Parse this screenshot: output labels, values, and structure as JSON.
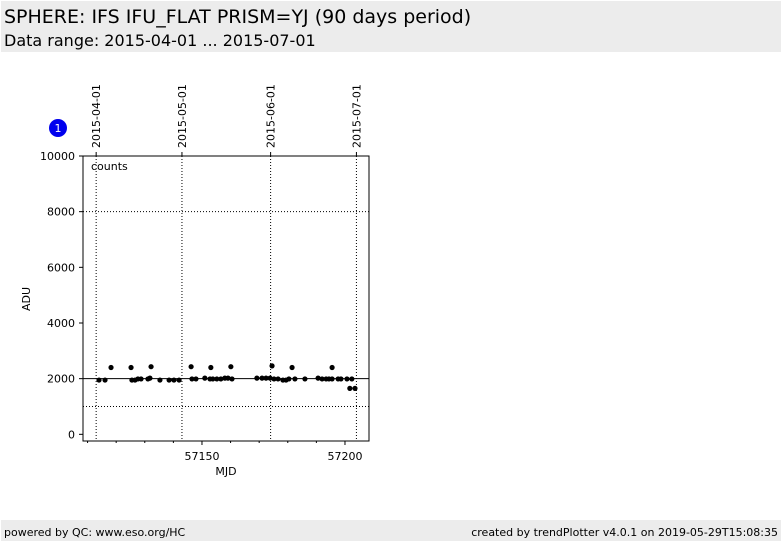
{
  "header": {
    "title": "SPHERE: IFS IFU_FLAT PRISM=YJ (90 days period)",
    "subtitle": "Data range: 2015-04-01 ... 2015-07-01"
  },
  "badge": "1",
  "chart_data": {
    "type": "scatter",
    "ylabel": "ADU",
    "xlabel": "MJD",
    "annotation": "counts",
    "color": "#000000",
    "x": [
      57114.0,
      57116.1,
      57118.2,
      57125.2,
      57125.5,
      57126.6,
      57127.6,
      57128.7,
      57131.1,
      57131.8,
      57132.2,
      57135.3,
      57138.5,
      57140.2,
      57142.0,
      57146.2,
      57146.5,
      57147.9,
      57151.0,
      57152.8,
      57153.1,
      57153.8,
      57155.2,
      57156.6,
      57158.0,
      57159.1,
      57160.1,
      57160.5,
      57169.2,
      57171.0,
      57172.4,
      57173.8,
      57174.5,
      57175.2,
      57176.6,
      57178.3,
      57179.4,
      57180.4,
      57181.5,
      57182.5,
      57186.0,
      57190.6,
      57192.0,
      57193.4,
      57194.4,
      57195.5,
      57195.5,
      57197.6,
      57198.6,
      57200.7,
      57201.7,
      57202.4,
      57203.5
    ],
    "values": [
      1950,
      1950,
      2400,
      2400,
      1950,
      1950,
      1990,
      1990,
      1990,
      2020,
      2430,
      1950,
      1950,
      1950,
      1950,
      2430,
      1990,
      1990,
      2020,
      1990,
      2400,
      1990,
      1990,
      1990,
      2020,
      2020,
      2430,
      1990,
      2020,
      2020,
      2020,
      2020,
      2460,
      1990,
      1990,
      1950,
      1950,
      1990,
      2400,
      1990,
      1990,
      2020,
      1990,
      1990,
      1990,
      1990,
      2400,
      1990,
      1990,
      1990,
      1650,
      1990,
      1650
    ],
    "xlim": [
      57108.4,
      57208.4
    ],
    "ylim": [
      -240,
      10000
    ],
    "xticks": [
      57150,
      57200
    ],
    "xticks_minor": [
      57110,
      57120,
      57130,
      57140,
      57160,
      57170,
      57180,
      57190
    ],
    "yticks": [
      0,
      2000,
      4000,
      6000,
      8000,
      10000
    ],
    "top_ticks": [
      {
        "value": 57113,
        "label": "2015-04-01"
      },
      {
        "value": 57143,
        "label": "2015-05-01"
      },
      {
        "value": 57174,
        "label": "2015-06-01"
      },
      {
        "value": 57204,
        "label": "2015-07-01"
      }
    ],
    "hlines": [
      {
        "value": 2000,
        "style": "solid"
      },
      {
        "value": 8000,
        "style": "dotted"
      },
      {
        "value": 1000,
        "style": "dotted"
      }
    ]
  },
  "footer": {
    "left": "powered by QC: www.eso.org/HC",
    "right": "created by trendPlotter v4.0.1 on 2019-05-29T15:08:35"
  }
}
